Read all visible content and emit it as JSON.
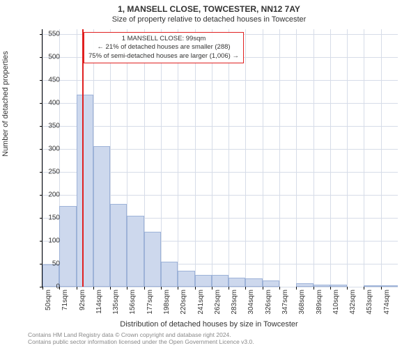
{
  "title": "1, MANSELL CLOSE, TOWCESTER, NN12 7AY",
  "subtitle": "Size of property relative to detached houses in Towcester",
  "ylabel": "Number of detached properties",
  "xlabel": "Distribution of detached houses by size in Towcester",
  "chart": {
    "type": "histogram",
    "ylim": [
      0,
      560
    ],
    "ytick_step": 50,
    "yticks": [
      0,
      50,
      100,
      150,
      200,
      250,
      300,
      350,
      400,
      450,
      500,
      550
    ],
    "xticks": [
      "50sqm",
      "71sqm",
      "92sqm",
      "114sqm",
      "135sqm",
      "156sqm",
      "177sqm",
      "198sqm",
      "220sqm",
      "241sqm",
      "262sqm",
      "283sqm",
      "304sqm",
      "326sqm",
      "347sqm",
      "368sqm",
      "389sqm",
      "410sqm",
      "432sqm",
      "453sqm",
      "474sqm"
    ],
    "values": [
      48,
      175,
      418,
      305,
      180,
      155,
      120,
      55,
      35,
      25,
      25,
      20,
      18,
      13,
      0,
      8,
      5,
      5,
      0,
      3,
      3
    ],
    "bar_fill": "#cdd8ed",
    "bar_stroke": "#9db2d8",
    "grid_color": "#d6dce8",
    "background_color": "#ffffff",
    "reference_line_x_index": 2.33,
    "reference_line_color": "#e02020"
  },
  "annotation": {
    "line1": "1 MANSELL CLOSE: 99sqm",
    "line2": "← 21% of detached houses are smaller (288)",
    "line3": "75% of semi-detached houses are larger (1,006) →",
    "border_color": "#e02020"
  },
  "credits": {
    "line1": "Contains HM Land Registry data © Crown copyright and database right 2024.",
    "line2": "Contains public sector information licensed under the Open Government Licence v3.0."
  }
}
